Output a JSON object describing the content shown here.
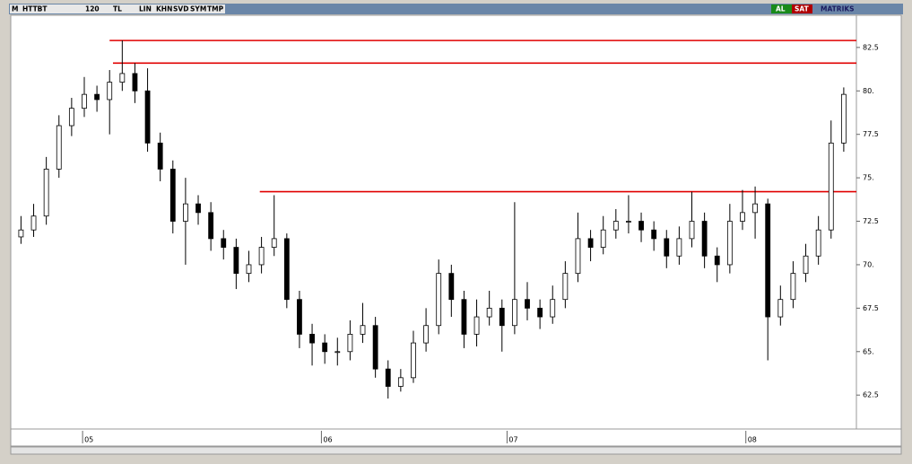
{
  "toolbar": {
    "logo": "M",
    "symbol": "HTTBT",
    "period": "120",
    "currency": "TL",
    "buttons": [
      "LIN",
      "KHN",
      "SVD",
      "SYM",
      "TMP"
    ],
    "buy": "AL",
    "sell": "SAT",
    "brand": "MATRIKS"
  },
  "chart_data": {
    "type": "candlestick",
    "x": [
      1,
      2.5,
      4,
      5.5,
      7,
      8.5,
      10,
      11.5,
      13,
      14.5,
      16,
      17.5,
      19,
      20.5,
      22,
      23.5,
      25,
      26.5,
      28,
      29.5,
      31,
      32.5,
      34,
      35.5,
      37,
      38.5,
      40,
      41.5,
      43,
      44.5,
      46,
      47.5,
      49,
      50.5,
      52,
      53.5,
      55,
      56.5,
      58,
      59.5,
      61,
      62.5,
      64,
      65.5,
      67,
      68.5,
      70,
      71.5,
      73,
      74.5,
      76,
      77.5,
      79,
      80.5,
      82,
      83.5,
      85,
      86.5,
      88,
      89.5,
      91,
      92.5,
      94,
      95.5,
      97,
      98.5
    ],
    "open": [
      71.6,
      72,
      72.8,
      75.5,
      78,
      79,
      79.8,
      79.5,
      80.5,
      81,
      80,
      77,
      75.5,
      72.5,
      73.5,
      73,
      71.5,
      71,
      69.5,
      70,
      71,
      71.5,
      68,
      66,
      65.5,
      65,
      65,
      66,
      66.5,
      64,
      63,
      63.5,
      65.5,
      66.5,
      69.5,
      68,
      66,
      67,
      67.5,
      66.5,
      68,
      67.5,
      67,
      68,
      69.5,
      71.5,
      71,
      72,
      72.5,
      72.5,
      72,
      71.5,
      70.5,
      71.5,
      72.5,
      70.5,
      70,
      72.5,
      73,
      73.5,
      67,
      68,
      69.5,
      70.5,
      72,
      77
    ],
    "high": [
      72.8,
      73.5,
      76.2,
      78.6,
      79.6,
      80.8,
      80.3,
      81.2,
      82.9,
      81.6,
      81.3,
      77.6,
      76,
      75,
      74,
      73.6,
      72,
      71.5,
      70.8,
      71.6,
      74,
      71.8,
      68.5,
      66.6,
      66,
      65.8,
      66.8,
      67.8,
      67,
      64.5,
      64,
      66.2,
      67.5,
      70.3,
      70,
      68.5,
      68,
      68.5,
      68,
      73.6,
      69,
      68,
      68.8,
      70.2,
      73,
      72,
      72.8,
      73.2,
      74,
      73,
      72.5,
      72,
      72.2,
      74.2,
      73,
      71,
      73.5,
      74.3,
      74.5,
      73.8,
      68.8,
      70.2,
      71.2,
      72.8,
      78.3,
      80.2
    ],
    "low": [
      71.2,
      71.6,
      72.3,
      75,
      77.4,
      78.5,
      78.8,
      77.5,
      80,
      79.3,
      76.5,
      74.8,
      71.8,
      70,
      72.3,
      70.8,
      70.3,
      68.6,
      69,
      69.5,
      70.5,
      67.5,
      65.2,
      64.2,
      64.3,
      64.2,
      64.5,
      65.5,
      63.5,
      62.3,
      62.7,
      63.2,
      65,
      66,
      67,
      65.2,
      65.3,
      66.5,
      65,
      66,
      66.8,
      66.3,
      66.6,
      67.5,
      69,
      70.2,
      70.6,
      71.5,
      71.8,
      71.3,
      70.8,
      69.8,
      70,
      71,
      69.8,
      69,
      69.5,
      72,
      71.5,
      64.5,
      66.5,
      67.5,
      69,
      70,
      71.5,
      76.5
    ],
    "close": [
      72,
      72.8,
      75.5,
      78,
      79,
      79.8,
      79.5,
      80.5,
      81,
      80,
      77,
      75.5,
      72.5,
      73.5,
      73,
      71.5,
      71,
      69.5,
      70,
      71,
      71.5,
      68,
      66,
      65.5,
      65,
      65,
      66,
      66.5,
      64,
      63,
      63.5,
      65.5,
      66.5,
      69.5,
      68,
      66,
      67,
      67.5,
      66.5,
      68,
      67.5,
      67,
      68,
      69.5,
      71.5,
      71,
      72,
      72.5,
      72.5,
      72,
      71.5,
      70.5,
      71.5,
      72.5,
      70.5,
      70,
      72.5,
      73,
      73.5,
      67,
      68,
      69.5,
      70.5,
      72,
      77,
      79.8
    ],
    "xlim": [
      0,
      100
    ],
    "xticks": [
      {
        "value": 8.3,
        "label": "05"
      },
      {
        "value": 36.6,
        "label": "06"
      },
      {
        "value": 58.6,
        "label": "07"
      },
      {
        "value": 86.9,
        "label": "08"
      }
    ],
    "ylim": [
      60.6,
      84.3
    ],
    "yticks": [
      {
        "value": 62.5,
        "label": "62.5"
      },
      {
        "value": 65,
        "label": "65."
      },
      {
        "value": 67.5,
        "label": "67.5"
      },
      {
        "value": 70,
        "label": "70."
      },
      {
        "value": 72.5,
        "label": "72.5"
      },
      {
        "value": 75,
        "label": "75."
      },
      {
        "value": 77.5,
        "label": "77.5"
      },
      {
        "value": 80,
        "label": "80."
      },
      {
        "value": 82.5,
        "label": "82.5"
      }
    ],
    "lines": [
      {
        "value": 82.9,
        "from": 11.5
      },
      {
        "value": 81.6,
        "from": 11.9
      },
      {
        "value": 74.2,
        "from": 29.3
      }
    ],
    "line_color": "#e00000",
    "up_color": "#ffffff",
    "down_color": "#000000"
  }
}
